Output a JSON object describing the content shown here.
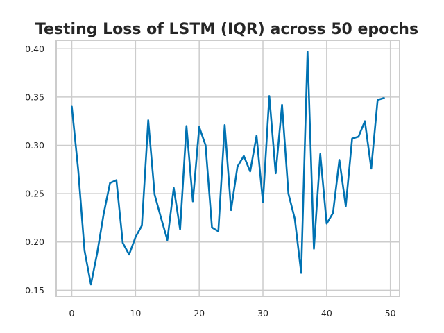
{
  "chart_data": {
    "type": "line",
    "title": "Testing Loss of LSTM (IQR) across 50 epochs",
    "xlabel": "",
    "ylabel": "",
    "xlim": [
      -2.45,
      51.45
    ],
    "ylim": [
      0.1438,
      0.4088
    ],
    "xticks": [
      0,
      10,
      20,
      30,
      40,
      50
    ],
    "yticks": [
      0.15,
      0.2,
      0.25,
      0.3,
      0.35,
      0.4
    ],
    "xtick_labels": [
      "0",
      "10",
      "20",
      "30",
      "40",
      "50"
    ],
    "ytick_labels": [
      "0.15",
      "0.20",
      "0.25",
      "0.30",
      "0.35",
      "0.40"
    ],
    "grid": true,
    "series": [
      {
        "color": "#0072b2",
        "x": [
          0,
          1,
          2,
          3,
          4,
          5,
          6,
          7,
          8,
          9,
          10,
          11,
          12,
          13,
          14,
          15,
          16,
          17,
          18,
          19,
          20,
          21,
          22,
          23,
          24,
          25,
          26,
          27,
          28,
          29,
          30,
          31,
          32,
          33,
          34,
          35,
          36,
          37,
          38,
          39,
          40,
          41,
          42,
          43,
          44,
          45,
          46,
          47,
          48,
          49
        ],
        "values": [
          0.34,
          0.275,
          0.191,
          0.156,
          0.189,
          0.229,
          0.261,
          0.264,
          0.199,
          0.187,
          0.205,
          0.217,
          0.326,
          0.249,
          0.225,
          0.202,
          0.256,
          0.213,
          0.32,
          0.242,
          0.319,
          0.3,
          0.215,
          0.211,
          0.321,
          0.233,
          0.278,
          0.289,
          0.273,
          0.31,
          0.241,
          0.351,
          0.271,
          0.342,
          0.25,
          0.224,
          0.168,
          0.397,
          0.193,
          0.291,
          0.219,
          0.23,
          0.285,
          0.237,
          0.307,
          0.309,
          0.325,
          0.276,
          0.347,
          0.349
        ]
      }
    ]
  }
}
